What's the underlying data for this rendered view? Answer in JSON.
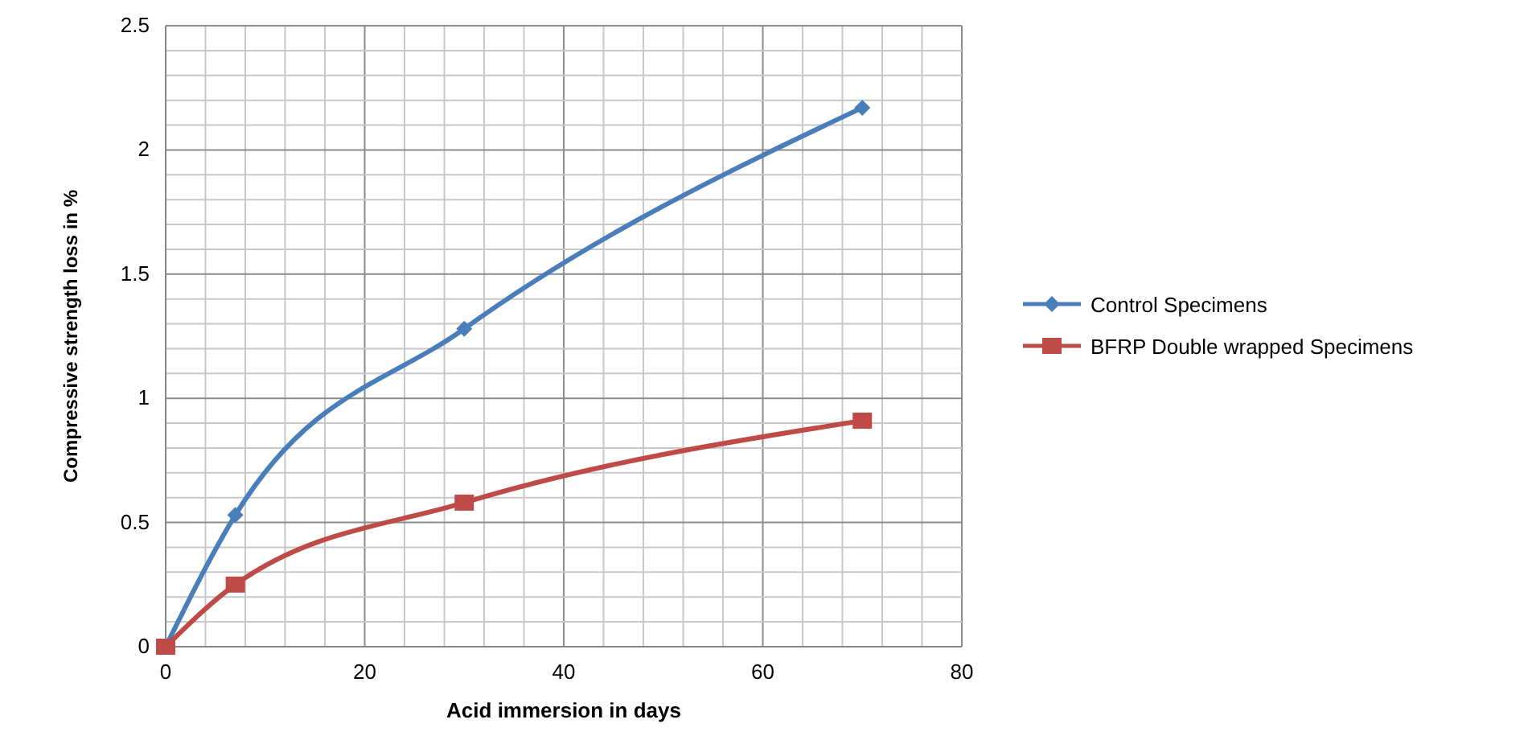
{
  "chart_data": {
    "type": "line",
    "xlabel": "Acid immersion in days",
    "ylabel": "Compressive strength loss in %",
    "x": [
      0,
      7,
      30,
      70
    ],
    "series": [
      {
        "name": "Control Specimens",
        "color": "#4a7ebb",
        "values": [
          0,
          0.53,
          1.28,
          2.17
        ],
        "marker": "diamond"
      },
      {
        "name": "BFRP Double wrapped Specimens",
        "color": "#be4b48",
        "values": [
          0,
          0.25,
          0.58,
          0.91
        ],
        "marker": "square"
      }
    ],
    "xlim": [
      0,
      80
    ],
    "xticks": [
      0,
      {
        "value": 4,
        "label": null
      },
      {
        "value": 8,
        "label": null
      },
      {
        "value": 12,
        "label": null
      },
      {
        "value": 16,
        "label": null
      },
      20,
      {
        "value": 24,
        "label": null
      },
      {
        "value": 28,
        "label": null
      },
      {
        "value": 32,
        "label": null
      },
      {
        "value": 36,
        "label": null
      },
      40,
      {
        "value": 44,
        "label": null
      },
      {
        "value": 48,
        "label": null
      },
      {
        "value": 52,
        "label": null
      },
      {
        "value": 56,
        "label": null
      },
      60,
      {
        "value": 64,
        "label": null
      },
      {
        "value": 68,
        "label": null
      },
      {
        "value": 72,
        "label": null
      },
      {
        "value": 76,
        "label": null
      },
      80
    ],
    "ylim": [
      0,
      2.5
    ],
    "yticks": [
      0,
      {
        "value": 0.1,
        "label": null
      },
      {
        "value": 0.2,
        "label": null
      },
      {
        "value": 0.3,
        "label": null
      },
      {
        "value": 0.4,
        "label": null
      },
      0.5,
      {
        "value": 0.6,
        "label": null
      },
      {
        "value": 0.7,
        "label": null
      },
      {
        "value": 0.8,
        "label": null
      },
      {
        "value": 0.9,
        "label": null
      },
      1,
      {
        "value": 1.1,
        "label": null
      },
      {
        "value": 1.2,
        "label": null
      },
      {
        "value": 1.3,
        "label": null
      },
      {
        "value": 1.4,
        "label": null
      },
      1.5,
      {
        "value": 1.6,
        "label": null
      },
      {
        "value": 1.7,
        "label": null
      },
      {
        "value": 1.8,
        "label": null
      },
      {
        "value": 1.9,
        "label": null
      },
      2,
      {
        "value": 2.1,
        "label": null
      },
      {
        "value": 2.2,
        "label": null
      },
      {
        "value": 2.3,
        "label": null
      },
      {
        "value": 2.4,
        "label": null
      },
      2.5
    ],
    "grid": true,
    "legend": "right",
    "line_style": "solid"
  }
}
